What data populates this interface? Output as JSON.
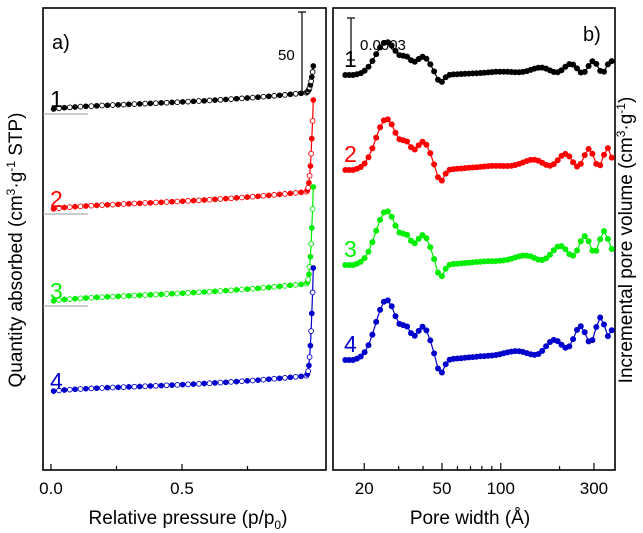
{
  "chart_data": [
    {
      "type": "line",
      "panel_label": "a)",
      "xlabel": "Relative pressure (p/p",
      "xlabel_sub": "0",
      "xlabel_end": ")",
      "ylabel": "Quantity absorbed (cm",
      "ylabel_sup1": "3",
      "ylabel_mid": "·g",
      "ylabel_sup2": "-1",
      "ylabel_end": " STP)",
      "xlim": [
        0,
        1
      ],
      "x_ticks": [
        {
          "v": 0.0,
          "label": "0.0"
        },
        {
          "v": 0.5,
          "label": "0.5"
        }
      ],
      "scale_bar": {
        "label": "50",
        "units": 50
      },
      "series": [
        {
          "name": "1",
          "color": "#000000",
          "base": 352,
          "rise": 10,
          "knee": 44,
          "ref_line": true
        },
        {
          "name": "2",
          "color": "#ff0000",
          "base": 252,
          "rise": 11,
          "knee": 110,
          "ref_line": true
        },
        {
          "name": "3",
          "color": "#00ee00",
          "base": 160,
          "rise": 11,
          "knee": 115,
          "ref_line": true
        },
        {
          "name": "4",
          "color": "#0000cc",
          "base": 70,
          "rise": 9,
          "knee": 124,
          "ref_line": false
        }
      ]
    },
    {
      "type": "line",
      "panel_label": "b)",
      "xlabel": "Pore width (Å)",
      "ylabel": "Incremental pore volume (cm",
      "ylabel_sup1": "3",
      "ylabel_mid": "·g",
      "ylabel_sup2": "-1",
      "ylabel_end": ")",
      "x_scale": "log",
      "xlim": [
        14,
        380
      ],
      "x_ticks": [
        {
          "v": 20,
          "label": "20"
        },
        {
          "v": 50,
          "label": "50"
        },
        {
          "v": 100,
          "label": "100"
        },
        {
          "v": 300,
          "label": "300"
        }
      ],
      "scale_bar": {
        "label": "0.0003"
      },
      "series": [
        {
          "name": "1",
          "color": "#000000",
          "offset": 395,
          "amp": 0.55
        },
        {
          "name": "2",
          "color": "#ff0000",
          "offset": 300,
          "amp": 0.85
        },
        {
          "name": "3",
          "color": "#00ee00",
          "offset": 205,
          "amp": 0.9
        },
        {
          "name": "4",
          "color": "#0000cc",
          "offset": 110,
          "amp": 1.0
        }
      ]
    }
  ]
}
